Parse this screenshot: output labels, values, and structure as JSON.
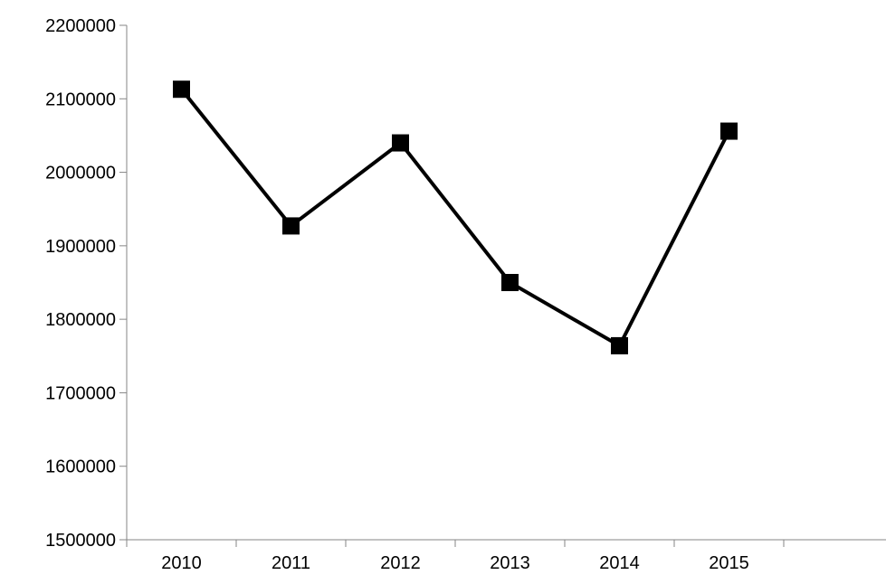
{
  "chart_data": {
    "type": "line",
    "title": "",
    "xlabel": "",
    "ylabel": "",
    "categories": [
      "2010",
      "2011",
      "2012",
      "2013",
      "2014",
      "2015"
    ],
    "series": [
      {
        "values": [
          2113000,
          1927000,
          2040000,
          1850000,
          1764000,
          2056000
        ],
        "color": "#000000",
        "marker": "square"
      }
    ],
    "ylim": [
      1500000,
      2200000
    ],
    "yticks": [
      "1500000",
      "1600000",
      "1700000",
      "1800000",
      "1900000",
      "2000000",
      "2100000",
      "2200000"
    ],
    "grid": false,
    "legend": "none"
  }
}
